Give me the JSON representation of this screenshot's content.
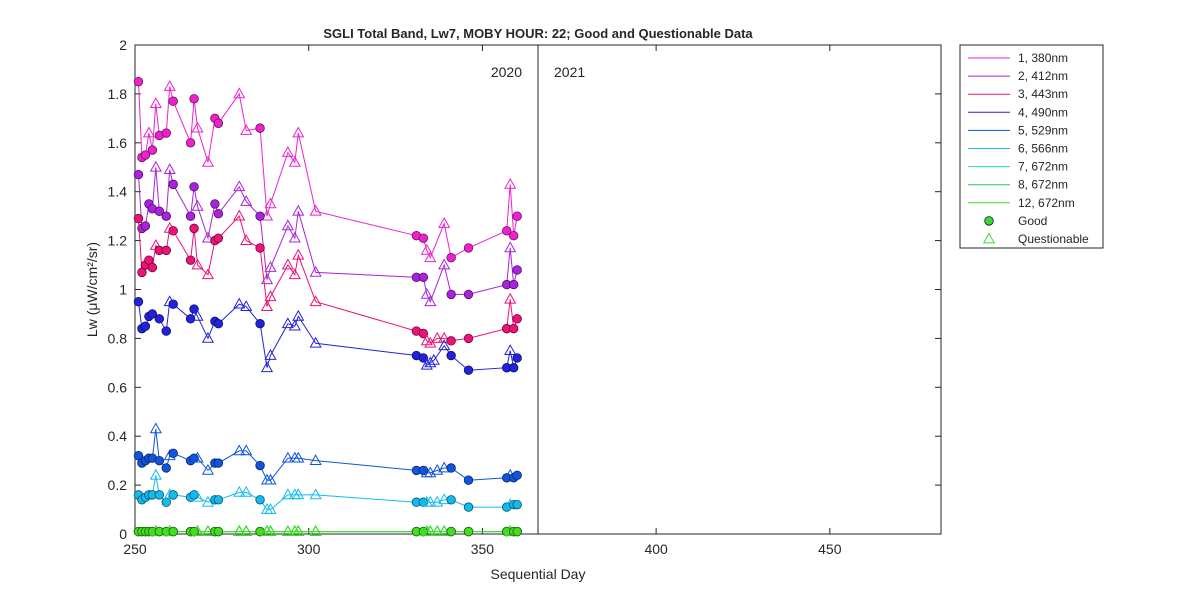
{
  "chart_data": {
    "type": "line",
    "title": "SGLI Total Band,  Lw7, MOBY HOUR: 22;  Good and Questionable Data",
    "xlabel": "Sequential Day",
    "ylabel": "Lw (μW/cm²/sr)",
    "xlim": [
      250,
      482
    ],
    "ylim": [
      0,
      2
    ],
    "xticks": [
      250,
      300,
      350,
      400,
      450
    ],
    "yticks": [
      0,
      0.2,
      0.4,
      0.6,
      0.8,
      1,
      1.2,
      1.4,
      1.6,
      1.8,
      2
    ],
    "ytick_labels": [
      "0",
      "0.2",
      "0.4",
      "0.6",
      "0.8",
      "1",
      "1.2",
      "1.4",
      "1.6",
      "1.8",
      "2"
    ],
    "grid": false,
    "legend_position": "outside-top-right",
    "year_divider": {
      "x": 366,
      "left_label": "2020",
      "right_label": "2021"
    },
    "markers": {
      "good": "circle",
      "questionable": "triangle"
    },
    "legend": {
      "series_entries": [
        "1, 380nm",
        "2, 412nm",
        "3, 443nm",
        "4, 490nm",
        "5, 529nm",
        "6, 566nm",
        "7, 672nm",
        "8, 672nm",
        "12, 672nm"
      ],
      "marker_entries": [
        {
          "label": "Good",
          "marker": "circle",
          "color": "#33dd33"
        },
        {
          "label": "Questionable",
          "marker": "triangle",
          "color": "#33dd33"
        }
      ]
    },
    "series": [
      {
        "name": "1, 380nm",
        "color": "#ee22cc",
        "x": [
          251,
          252,
          253,
          254,
          255,
          256,
          257,
          259,
          260,
          261,
          266,
          267,
          268,
          271,
          273,
          274,
          280,
          282,
          286,
          288,
          289,
          294,
          296,
          297,
          302,
          331,
          333,
          334,
          335,
          339,
          341,
          346,
          357,
          358,
          359,
          360
        ],
        "y": [
          1.85,
          1.54,
          1.55,
          1.64,
          1.57,
          1.76,
          1.63,
          1.64,
          1.83,
          1.77,
          1.6,
          1.78,
          1.66,
          1.52,
          1.7,
          1.68,
          1.8,
          1.65,
          1.66,
          1.3,
          1.35,
          1.56,
          1.52,
          1.64,
          1.32,
          1.22,
          1.21,
          1.16,
          1.13,
          1.27,
          1.13,
          1.17,
          1.24,
          1.43,
          1.22,
          1.3
        ],
        "q": [
          0,
          0,
          0,
          1,
          0,
          1,
          0,
          0,
          1,
          0,
          0,
          0,
          1,
          1,
          0,
          0,
          1,
          1,
          0,
          1,
          1,
          1,
          1,
          1,
          1,
          0,
          0,
          1,
          1,
          1,
          0,
          0,
          0,
          1,
          0,
          0
        ]
      },
      {
        "name": "2, 412nm",
        "color": "#aa22dd",
        "x": [
          251,
          252,
          253,
          254,
          255,
          256,
          257,
          259,
          260,
          261,
          266,
          267,
          268,
          271,
          273,
          274,
          280,
          282,
          286,
          288,
          289,
          294,
          296,
          297,
          302,
          331,
          333,
          334,
          335,
          339,
          341,
          346,
          357,
          358,
          359,
          360
        ],
        "y": [
          1.47,
          1.25,
          1.26,
          1.35,
          1.33,
          1.5,
          1.32,
          1.3,
          1.49,
          1.43,
          1.3,
          1.42,
          1.34,
          1.21,
          1.35,
          1.31,
          1.42,
          1.36,
          1.3,
          1.04,
          1.09,
          1.26,
          1.21,
          1.32,
          1.07,
          1.05,
          1.05,
          0.98,
          0.95,
          1.1,
          0.98,
          0.98,
          1.02,
          1.17,
          1.02,
          1.08
        ],
        "q": [
          0,
          0,
          0,
          0,
          0,
          1,
          0,
          0,
          1,
          0,
          0,
          0,
          1,
          1,
          0,
          0,
          1,
          1,
          0,
          1,
          1,
          1,
          1,
          1,
          1,
          0,
          0,
          1,
          1,
          1,
          0,
          0,
          0,
          1,
          0,
          0
        ]
      },
      {
        "name": "3, 443nm",
        "color": "#ee1177",
        "x": [
          251,
          252,
          253,
          254,
          255,
          256,
          257,
          259,
          260,
          261,
          266,
          267,
          268,
          271,
          273,
          274,
          280,
          282,
          286,
          288,
          289,
          294,
          296,
          297,
          302,
          331,
          333,
          334,
          335,
          337,
          339,
          341,
          346,
          357,
          358,
          359,
          360
        ],
        "y": [
          1.29,
          1.07,
          1.1,
          1.12,
          1.09,
          1.18,
          1.16,
          1.16,
          1.25,
          1.24,
          1.12,
          1.25,
          1.1,
          1.06,
          1.2,
          1.21,
          1.3,
          1.2,
          1.17,
          0.93,
          0.97,
          1.1,
          1.06,
          1.14,
          0.95,
          0.83,
          0.82,
          0.79,
          0.78,
          0.8,
          0.8,
          0.79,
          0.8,
          0.84,
          0.96,
          0.84,
          0.88
        ],
        "q": [
          0,
          0,
          0,
          0,
          0,
          1,
          0,
          0,
          1,
          0,
          0,
          0,
          1,
          1,
          0,
          0,
          1,
          1,
          0,
          1,
          1,
          1,
          1,
          1,
          1,
          0,
          0,
          1,
          1,
          1,
          1,
          0,
          0,
          0,
          1,
          0,
          0
        ]
      },
      {
        "name": "4, 490nm",
        "color": "#2222dd",
        "x": [
          251,
          252,
          253,
          254,
          255,
          257,
          259,
          260,
          261,
          266,
          267,
          268,
          271,
          273,
          274,
          280,
          282,
          286,
          288,
          289,
          294,
          296,
          297,
          302,
          331,
          333,
          334,
          335,
          336,
          339,
          341,
          346,
          357,
          358,
          359,
          360
        ],
        "y": [
          0.95,
          0.84,
          0.85,
          0.89,
          0.9,
          0.88,
          0.83,
          0.95,
          0.94,
          0.88,
          0.92,
          0.89,
          0.8,
          0.87,
          0.86,
          0.94,
          0.93,
          0.86,
          0.68,
          0.73,
          0.86,
          0.85,
          0.89,
          0.78,
          0.73,
          0.72,
          0.69,
          0.7,
          0.71,
          0.77,
          0.73,
          0.67,
          0.68,
          0.75,
          0.68,
          0.72
        ],
        "q": [
          0,
          0,
          0,
          0,
          0,
          0,
          0,
          1,
          0,
          0,
          0,
          1,
          1,
          0,
          0,
          1,
          1,
          0,
          1,
          1,
          1,
          1,
          1,
          1,
          0,
          0,
          1,
          1,
          1,
          1,
          0,
          0,
          0,
          1,
          0,
          0
        ]
      },
      {
        "name": "5, 529nm",
        "color": "#1155dd",
        "x": [
          251,
          252,
          253,
          254,
          255,
          256,
          257,
          259,
          260,
          261,
          266,
          267,
          268,
          271,
          273,
          274,
          280,
          282,
          286,
          288,
          289,
          294,
          296,
          297,
          302,
          331,
          333,
          334,
          335,
          337,
          339,
          341,
          346,
          357,
          358,
          359,
          360
        ],
        "y": [
          0.32,
          0.29,
          0.3,
          0.31,
          0.31,
          0.43,
          0.3,
          0.27,
          0.32,
          0.33,
          0.3,
          0.31,
          0.31,
          0.26,
          0.29,
          0.29,
          0.34,
          0.34,
          0.28,
          0.22,
          0.22,
          0.31,
          0.31,
          0.31,
          0.3,
          0.26,
          0.26,
          0.25,
          0.25,
          0.26,
          0.27,
          0.27,
          0.22,
          0.23,
          0.24,
          0.23,
          0.24
        ],
        "q": [
          0,
          0,
          0,
          0,
          0,
          1,
          0,
          0,
          1,
          0,
          0,
          0,
          1,
          1,
          0,
          0,
          1,
          1,
          0,
          1,
          1,
          1,
          1,
          1,
          1,
          0,
          0,
          1,
          1,
          1,
          1,
          0,
          0,
          0,
          1,
          0,
          0
        ]
      },
      {
        "name": "6, 566nm",
        "color": "#11bbee",
        "x": [
          251,
          252,
          253,
          254,
          255,
          256,
          257,
          259,
          260,
          261,
          266,
          267,
          268,
          271,
          273,
          274,
          280,
          282,
          286,
          288,
          289,
          294,
          296,
          297,
          302,
          331,
          333,
          334,
          335,
          337,
          339,
          341,
          346,
          357,
          358,
          359,
          360
        ],
        "y": [
          0.16,
          0.14,
          0.15,
          0.16,
          0.16,
          0.24,
          0.16,
          0.13,
          0.16,
          0.16,
          0.15,
          0.16,
          0.15,
          0.13,
          0.14,
          0.14,
          0.17,
          0.17,
          0.14,
          0.1,
          0.1,
          0.16,
          0.16,
          0.16,
          0.16,
          0.13,
          0.13,
          0.13,
          0.13,
          0.13,
          0.14,
          0.14,
          0.11,
          0.11,
          0.12,
          0.12,
          0.12
        ],
        "q": [
          0,
          0,
          0,
          0,
          0,
          1,
          0,
          0,
          1,
          0,
          0,
          0,
          1,
          1,
          0,
          0,
          1,
          1,
          0,
          1,
          1,
          1,
          1,
          1,
          1,
          0,
          0,
          1,
          1,
          1,
          1,
          0,
          0,
          0,
          1,
          0,
          0
        ]
      },
      {
        "name": "7, 672nm",
        "color": "#22ddaa",
        "x": [
          251,
          252,
          253,
          254,
          255,
          256,
          257,
          259,
          260,
          261,
          266,
          267,
          268,
          271,
          273,
          274,
          280,
          282,
          286,
          288,
          289,
          294,
          296,
          297,
          302,
          331,
          333,
          334,
          335,
          337,
          339,
          341,
          346,
          357,
          358,
          359,
          360
        ],
        "y": [
          0.01,
          0.01,
          0.01,
          0.01,
          0.01,
          0.01,
          0.01,
          0.01,
          0.01,
          0.01,
          0.01,
          0.01,
          0.01,
          0.01,
          0.01,
          0.01,
          0.01,
          0.01,
          0.01,
          0.01,
          0.01,
          0.01,
          0.01,
          0.01,
          0.01,
          0.01,
          0.01,
          0.01,
          0.01,
          0.01,
          0.01,
          0.01,
          0.01,
          0.01,
          0.01,
          0.01,
          0.01
        ],
        "q": [
          0,
          0,
          0,
          0,
          0,
          1,
          0,
          0,
          1,
          0,
          0,
          0,
          1,
          1,
          0,
          0,
          1,
          1,
          0,
          1,
          1,
          1,
          1,
          1,
          1,
          0,
          0,
          1,
          1,
          1,
          1,
          0,
          0,
          0,
          1,
          0,
          0
        ]
      },
      {
        "name": "8, 672nm",
        "color": "#22cc55",
        "x": [
          251,
          252,
          253,
          254,
          255,
          256,
          257,
          259,
          260,
          261,
          266,
          267,
          268,
          271,
          273,
          274,
          280,
          282,
          286,
          288,
          289,
          294,
          296,
          297,
          302,
          331,
          333,
          334,
          335,
          337,
          339,
          341,
          346,
          357,
          358,
          359,
          360
        ],
        "y": [
          0.01,
          0.01,
          0.01,
          0.01,
          0.01,
          0.01,
          0.01,
          0.01,
          0.01,
          0.01,
          0.01,
          0.01,
          0.01,
          0.01,
          0.01,
          0.01,
          0.01,
          0.01,
          0.01,
          0.01,
          0.01,
          0.01,
          0.01,
          0.01,
          0.01,
          0.01,
          0.01,
          0.01,
          0.01,
          0.01,
          0.01,
          0.01,
          0.01,
          0.01,
          0.01,
          0.01,
          0.01
        ],
        "q": [
          0,
          0,
          0,
          0,
          0,
          1,
          0,
          0,
          1,
          0,
          0,
          0,
          1,
          1,
          0,
          0,
          1,
          1,
          0,
          1,
          1,
          1,
          1,
          1,
          1,
          0,
          0,
          1,
          1,
          1,
          1,
          0,
          0,
          0,
          1,
          0,
          0
        ]
      },
      {
        "name": "12, 672nm",
        "color": "#44dd22",
        "x": [
          251,
          252,
          253,
          254,
          255,
          256,
          257,
          259,
          260,
          261,
          266,
          267,
          268,
          271,
          273,
          274,
          280,
          282,
          286,
          288,
          289,
          294,
          296,
          297,
          302,
          331,
          333,
          334,
          335,
          337,
          339,
          341,
          346,
          357,
          358,
          359,
          360
        ],
        "y": [
          0.01,
          0.01,
          0.01,
          0.01,
          0.01,
          0.01,
          0.01,
          0.01,
          0.01,
          0.01,
          0.01,
          0.01,
          0.01,
          0.01,
          0.01,
          0.01,
          0.01,
          0.01,
          0.01,
          0.01,
          0.01,
          0.01,
          0.01,
          0.01,
          0.01,
          0.01,
          0.01,
          0.01,
          0.01,
          0.01,
          0.01,
          0.01,
          0.01,
          0.01,
          0.01,
          0.01,
          0.01
        ],
        "q": [
          0,
          0,
          0,
          0,
          0,
          1,
          0,
          0,
          1,
          0,
          0,
          0,
          1,
          1,
          0,
          0,
          1,
          1,
          0,
          1,
          1,
          1,
          1,
          1,
          1,
          0,
          0,
          1,
          1,
          1,
          1,
          0,
          0,
          0,
          1,
          0,
          0
        ]
      }
    ]
  }
}
